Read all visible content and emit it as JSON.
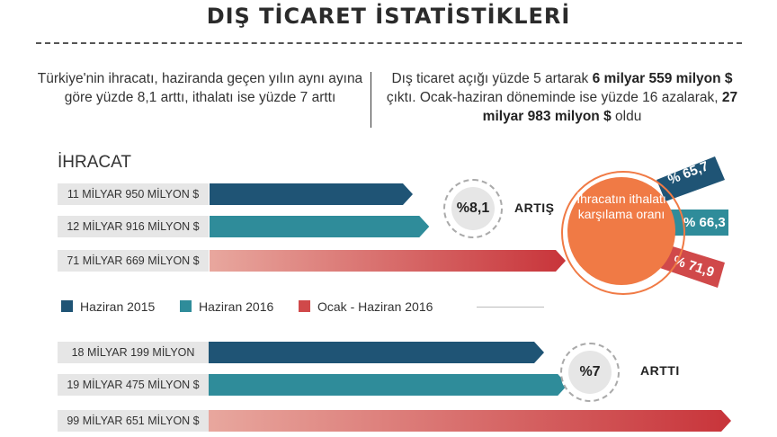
{
  "title": "DIŞ TİCARET İSTATİSTİKLERİ",
  "intro": {
    "left": "Türkiye'nin ihracatı, haziranda geçen yılın aynı ayına göre yüzde 8,1 arttı, ithalatı ise yüzde 7 arttı",
    "right_1": "Dış ticaret açığı yüzde 5 artarak ",
    "right_2": "6 milyar 559 milyon $",
    "right_3": " çıktı. Ocak-haziran döneminde ise yüzde 16 azalarak, ",
    "right_4": "27 milyar 983 milyon $",
    "right_5": " oldu"
  },
  "colors": {
    "haziran_2015": "#1f5475",
    "haziran_2016": "#2f8c9a",
    "ocak_haziran_2016_start": "#e8a79e",
    "ocak_haziran_2016_end": "#c8343a",
    "ratio_circle": "#f07a45"
  },
  "chart_data": [
    {
      "type": "bar",
      "orientation": "horizontal",
      "group_label": "İHRACAT",
      "categories": [
        "Haziran 2015",
        "Haziran 2016",
        "Ocak - Haziran 2016"
      ],
      "labels": [
        "11 MİLYAR  950 MİLYON $",
        "12 MİLYAR  916 MİLYON $",
        "71 MİLYAR  669 MİLYON $"
      ],
      "values": [
        11.95,
        12.916,
        71.669
      ],
      "change_value": "%8,1",
      "change_word": "ARTIŞ"
    },
    {
      "type": "bar",
      "orientation": "horizontal",
      "group_label": "",
      "categories": [
        "Haziran 2015",
        "Haziran 2016",
        "Ocak - Haziran 2016"
      ],
      "labels": [
        "18 MİLYAR  199 MİLYON",
        "19 MİLYAR 475 MİLYON $",
        "99 MİLYAR  651 MİLYON $"
      ],
      "values": [
        18.199,
        19.475,
        99.651
      ],
      "change_value": "%7",
      "change_word": "ARTTI"
    }
  ],
  "legend": [
    "Haziran 2015",
    "Haziran 2016",
    "Ocak - Haziran 2016"
  ],
  "ratio": {
    "caption": "İhracatın ithalatı karşılama oranı",
    "values": [
      "% 65,7",
      "% 66,3",
      "% 71,9"
    ]
  }
}
